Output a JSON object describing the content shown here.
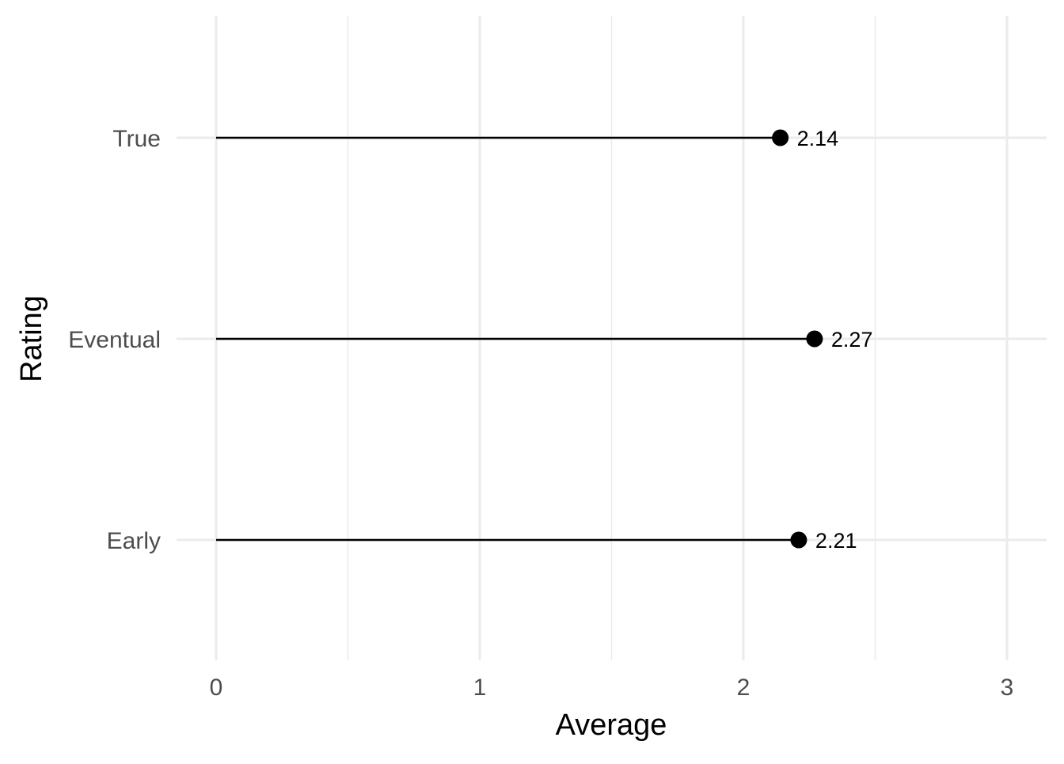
{
  "chart_data": {
    "type": "lollipop",
    "orientation": "horizontal",
    "categories": [
      "Early",
      "Eventual",
      "True"
    ],
    "values": [
      2.21,
      2.27,
      2.14
    ],
    "data_labels": [
      "2.21",
      "2.27",
      "2.14"
    ],
    "xlabel": "Average",
    "ylabel": "Rating",
    "xlim": [
      0,
      3.15
    ],
    "x_ticks": [
      0,
      1,
      2,
      3
    ],
    "x_tick_labels": [
      "0",
      "1",
      "2",
      "3"
    ],
    "x_minor_ticks": [
      0.5,
      1.5,
      2.5
    ],
    "grid": true,
    "legend": "none",
    "colors": {
      "mark": "#000000",
      "grid": "#ebebeb",
      "tick_text": "#4d4d4d",
      "title_text": "#000000",
      "background": "#ffffff"
    }
  }
}
